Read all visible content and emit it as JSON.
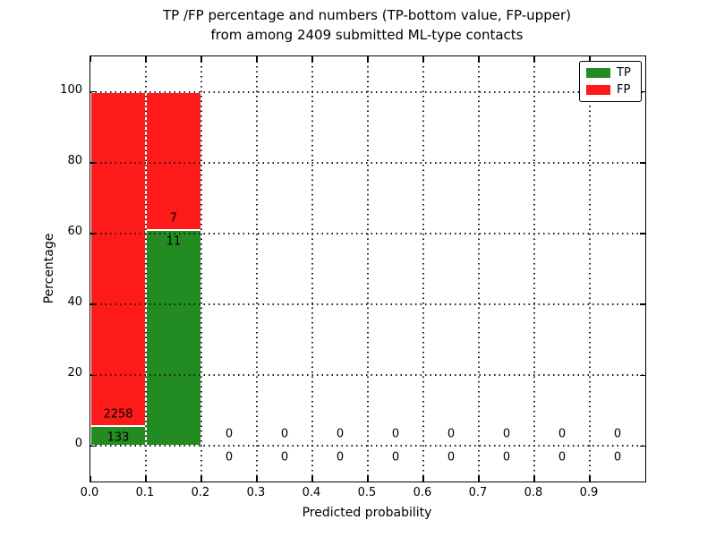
{
  "title": {
    "line1": "TP /FP percentage and numbers (TP-bottom value, FP-upper)",
    "line2": "from among 2409 submitted ML-type contacts"
  },
  "chart_data": {
    "type": "bar",
    "stacked": true,
    "title": "TP /FP percentage and numbers (TP-bottom value, FP-upper) from among 2409 submitted ML-type contacts",
    "xlabel": "Predicted probability",
    "ylabel": "Percentage",
    "xlim": [
      0.0,
      1.0
    ],
    "ylim": [
      -10,
      110
    ],
    "xtick_labels": [
      "0.0",
      "0.1",
      "0.2",
      "0.3",
      "0.4",
      "0.5",
      "0.6",
      "0.7",
      "0.8",
      "0.9"
    ],
    "ytick_labels": [
      "0",
      "20",
      "40",
      "60",
      "80",
      "100"
    ],
    "ytick_values": [
      0,
      20,
      40,
      60,
      80,
      100
    ],
    "grid": "dotted",
    "legend": {
      "position": "upper right",
      "entries": [
        {
          "label": "TP",
          "color": "#228b22"
        },
        {
          "label": "FP",
          "color": "#ff1a1a"
        }
      ]
    },
    "series_note": "TP percentage drawn bottom (green), FP percentage stacked above (red); numeric labels show raw counts: FP count above boundary, TP count below boundary",
    "bins": [
      {
        "range": [
          0.0,
          0.1
        ],
        "tp_count": 133,
        "fp_count": 2258,
        "tp_pct": 5.56,
        "fp_pct": 94.44
      },
      {
        "range": [
          0.1,
          0.2
        ],
        "tp_count": 11,
        "fp_count": 7,
        "tp_pct": 61.11,
        "fp_pct": 38.89
      },
      {
        "range": [
          0.2,
          0.3
        ],
        "tp_count": 0,
        "fp_count": 0,
        "tp_pct": 0,
        "fp_pct": 0
      },
      {
        "range": [
          0.3,
          0.4
        ],
        "tp_count": 0,
        "fp_count": 0,
        "tp_pct": 0,
        "fp_pct": 0
      },
      {
        "range": [
          0.4,
          0.5
        ],
        "tp_count": 0,
        "fp_count": 0,
        "tp_pct": 0,
        "fp_pct": 0
      },
      {
        "range": [
          0.5,
          0.6
        ],
        "tp_count": 0,
        "fp_count": 0,
        "tp_pct": 0,
        "fp_pct": 0
      },
      {
        "range": [
          0.6,
          0.7
        ],
        "tp_count": 0,
        "fp_count": 0,
        "tp_pct": 0,
        "fp_pct": 0
      },
      {
        "range": [
          0.7,
          0.8
        ],
        "tp_count": 0,
        "fp_count": 0,
        "tp_pct": 0,
        "fp_pct": 0
      },
      {
        "range": [
          0.8,
          0.9
        ],
        "tp_count": 0,
        "fp_count": 0,
        "tp_pct": 0,
        "fp_pct": 0
      },
      {
        "range": [
          0.9,
          1.0
        ],
        "tp_count": 0,
        "fp_count": 0,
        "tp_pct": 0,
        "fp_pct": 0
      }
    ]
  },
  "colors": {
    "tp": "#228b22",
    "fp": "#ff1a1a",
    "background": "#ffffff",
    "axis": "#000000",
    "grid": "#1a1a1a"
  }
}
